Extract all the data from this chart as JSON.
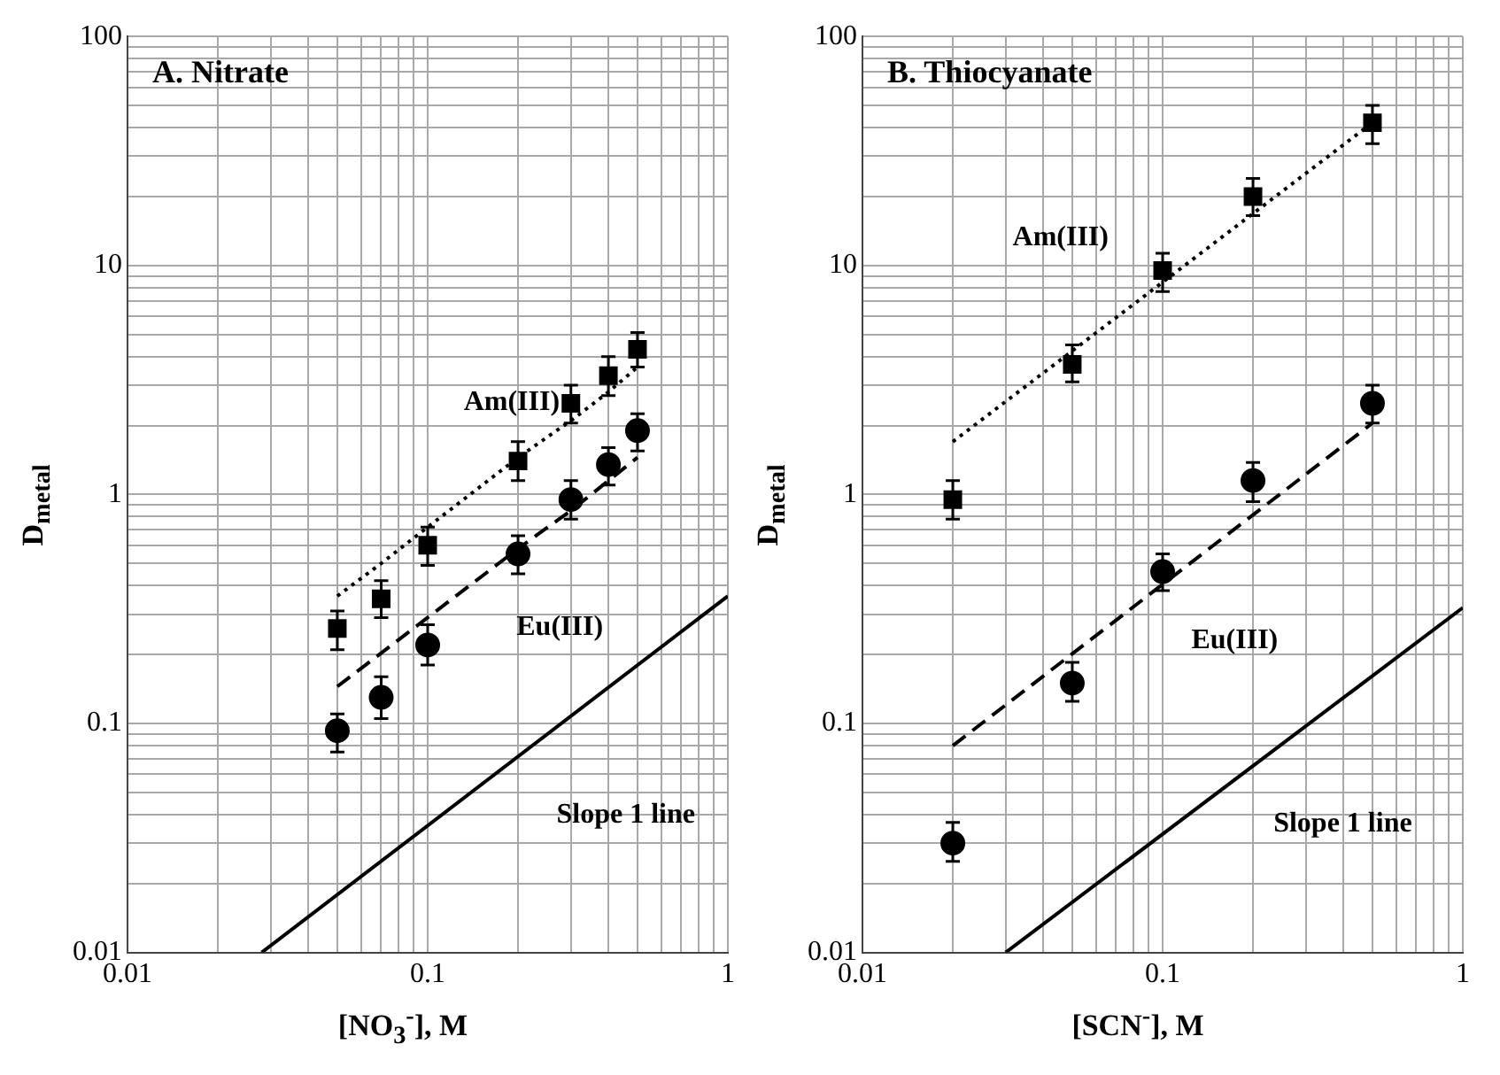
{
  "chart_data": [
    {
      "type": "scatter",
      "title": "A. Nitrate",
      "xlabel": "[NO$_{3}$$^{-}$], M",
      "ylabel": "D$_{metal}$",
      "log": "xy",
      "grid": true,
      "xlim": [
        0.01,
        1
      ],
      "ylim": [
        0.01,
        100
      ],
      "xticks": [
        0.01,
        {
          "value": 0.02,
          "label": null
        },
        {
          "value": 0.03,
          "label": null
        },
        {
          "value": 0.04,
          "label": null
        },
        {
          "value": 0.05,
          "label": null
        },
        {
          "value": 0.06,
          "label": null
        },
        {
          "value": 0.07,
          "label": null
        },
        {
          "value": 0.08,
          "label": null
        },
        {
          "value": 0.09,
          "label": null
        },
        0.1,
        {
          "value": 0.2,
          "label": null
        },
        {
          "value": 0.3,
          "label": null
        },
        {
          "value": 0.4,
          "label": null
        },
        {
          "value": 0.5,
          "label": null
        },
        {
          "value": 0.6,
          "label": null
        },
        {
          "value": 0.7,
          "label": null
        },
        {
          "value": 0.8,
          "label": null
        },
        {
          "value": 0.9,
          "label": null
        },
        1
      ],
      "yticks": [
        0.01,
        {
          "value": 0.02,
          "label": null
        },
        {
          "value": 0.03,
          "label": null
        },
        {
          "value": 0.04,
          "label": null
        },
        {
          "value": 0.05,
          "label": null
        },
        {
          "value": 0.06,
          "label": null
        },
        {
          "value": 0.07,
          "label": null
        },
        {
          "value": 0.08,
          "label": null
        },
        {
          "value": 0.09,
          "label": null
        },
        0.1,
        {
          "value": 0.2,
          "label": null
        },
        {
          "value": 0.3,
          "label": null
        },
        {
          "value": 0.4,
          "label": null
        },
        {
          "value": 0.5,
          "label": null
        },
        {
          "value": 0.6,
          "label": null
        },
        {
          "value": 0.7,
          "label": null
        },
        {
          "value": 0.8,
          "label": null
        },
        {
          "value": 0.9,
          "label": null
        },
        1,
        {
          "value": 2,
          "label": null
        },
        {
          "value": 3,
          "label": null
        },
        {
          "value": 4,
          "label": null
        },
        {
          "value": 5,
          "label": null
        },
        {
          "value": 6,
          "label": null
        },
        {
          "value": 7,
          "label": null
        },
        {
          "value": 8,
          "label": null
        },
        {
          "value": 9,
          "label": null
        },
        10,
        {
          "value": 20,
          "label": null
        },
        {
          "value": 30,
          "label": null
        },
        {
          "value": 40,
          "label": null
        },
        {
          "value": 50,
          "label": null
        },
        {
          "value": 60,
          "label": null
        },
        {
          "value": 70,
          "label": null
        },
        {
          "value": 80,
          "label": null
        },
        {
          "value": 90,
          "label": null
        },
        100
      ],
      "series": [
        {
          "type": "scatter",
          "name": "Am(III)",
          "marker": "square",
          "color": "#000000",
          "x": [
            0.05,
            0.07,
            0.1,
            0.2,
            0.3,
            0.4,
            0.5
          ],
          "values": [
            0.26,
            0.35,
            0.6,
            1.4,
            2.5,
            3.3,
            4.3
          ],
          "errors": [
            [
              0.21,
              0.31
            ],
            [
              0.29,
              0.42
            ],
            [
              0.49,
              0.72
            ],
            [
              1.15,
              1.7
            ],
            [
              2.05,
              3.0
            ],
            [
              2.7,
              4.0
            ],
            [
              3.6,
              5.1
            ]
          ]
        },
        {
          "type": "scatter",
          "name": "Eu(III)",
          "marker": "circle",
          "color": "#000000",
          "x": [
            0.05,
            0.07,
            0.1,
            0.2,
            0.3,
            0.4,
            0.5
          ],
          "values": [
            0.093,
            0.13,
            0.22,
            0.55,
            0.95,
            1.35,
            1.9
          ],
          "errors": [
            [
              0.075,
              0.11
            ],
            [
              0.105,
              0.16
            ],
            [
              0.18,
              0.27
            ],
            [
              0.45,
              0.66
            ],
            [
              0.78,
              1.15
            ],
            [
              1.1,
              1.6
            ],
            [
              1.55,
              2.25
            ]
          ]
        },
        {
          "type": "line",
          "marker": "none",
          "line_style": "dotted",
          "color": "#000000",
          "x": [
            0.05,
            0.07,
            0.1,
            0.2,
            0.3,
            0.4,
            0.5
          ],
          "values": [
            0.36,
            0.5,
            0.72,
            1.45,
            2.1,
            2.8,
            3.6
          ]
        },
        {
          "type": "line",
          "marker": "none",
          "line_style": "dashed",
          "color": "#000000",
          "x": [
            0.05,
            0.1,
            0.2,
            0.3,
            0.5
          ],
          "values": [
            0.145,
            0.29,
            0.58,
            0.85,
            1.45
          ]
        },
        {
          "type": "line",
          "name": "Slope 1 line",
          "marker": "none",
          "line_style": "solid",
          "color": "#000000",
          "x": [
            0.028,
            1
          ],
          "values": [
            0.01,
            0.36
          ]
        }
      ]
    },
    {
      "type": "scatter",
      "title": "B. Thiocyanate",
      "xlabel": "[SCN$^{-}$], M",
      "ylabel": "D$_{metal}$",
      "log": "xy",
      "grid": true,
      "xlim": [
        0.01,
        1
      ],
      "ylim": [
        0.01,
        100
      ],
      "xticks": [
        0.01,
        {
          "value": 0.02,
          "label": null
        },
        {
          "value": 0.03,
          "label": null
        },
        {
          "value": 0.04,
          "label": null
        },
        {
          "value": 0.05,
          "label": null
        },
        {
          "value": 0.06,
          "label": null
        },
        {
          "value": 0.07,
          "label": null
        },
        {
          "value": 0.08,
          "label": null
        },
        {
          "value": 0.09,
          "label": null
        },
        0.1,
        {
          "value": 0.2,
          "label": null
        },
        {
          "value": 0.3,
          "label": null
        },
        {
          "value": 0.4,
          "label": null
        },
        {
          "value": 0.5,
          "label": null
        },
        {
          "value": 0.6,
          "label": null
        },
        {
          "value": 0.7,
          "label": null
        },
        {
          "value": 0.8,
          "label": null
        },
        {
          "value": 0.9,
          "label": null
        },
        1
      ],
      "yticks": [
        0.01,
        {
          "value": 0.02,
          "label": null
        },
        {
          "value": 0.03,
          "label": null
        },
        {
          "value": 0.04,
          "label": null
        },
        {
          "value": 0.05,
          "label": null
        },
        {
          "value": 0.06,
          "label": null
        },
        {
          "value": 0.07,
          "label": null
        },
        {
          "value": 0.08,
          "label": null
        },
        {
          "value": 0.09,
          "label": null
        },
        0.1,
        {
          "value": 0.2,
          "label": null
        },
        {
          "value": 0.3,
          "label": null
        },
        {
          "value": 0.4,
          "label": null
        },
        {
          "value": 0.5,
          "label": null
        },
        {
          "value": 0.6,
          "label": null
        },
        {
          "value": 0.7,
          "label": null
        },
        {
          "value": 0.8,
          "label": null
        },
        {
          "value": 0.9,
          "label": null
        },
        1,
        {
          "value": 2,
          "label": null
        },
        {
          "value": 3,
          "label": null
        },
        {
          "value": 4,
          "label": null
        },
        {
          "value": 5,
          "label": null
        },
        {
          "value": 6,
          "label": null
        },
        {
          "value": 7,
          "label": null
        },
        {
          "value": 8,
          "label": null
        },
        {
          "value": 9,
          "label": null
        },
        10,
        {
          "value": 20,
          "label": null
        },
        {
          "value": 30,
          "label": null
        },
        {
          "value": 40,
          "label": null
        },
        {
          "value": 50,
          "label": null
        },
        {
          "value": 60,
          "label": null
        },
        {
          "value": 70,
          "label": null
        },
        {
          "value": 80,
          "label": null
        },
        {
          "value": 90,
          "label": null
        },
        100
      ],
      "series": [
        {
          "type": "scatter",
          "name": "Am(III)",
          "marker": "square",
          "color": "#000000",
          "x": [
            0.02,
            0.05,
            0.1,
            0.2,
            0.5
          ],
          "values": [
            0.95,
            3.7,
            9.5,
            20,
            42
          ],
          "errors": [
            [
              0.78,
              1.15
            ],
            [
              3.1,
              4.5
            ],
            [
              7.7,
              11.3
            ],
            [
              16.5,
              24
            ],
            [
              34,
              50
            ]
          ]
        },
        {
          "type": "scatter",
          "name": "Eu(III)",
          "marker": "circle",
          "color": "#000000",
          "x": [
            0.02,
            0.05,
            0.1,
            0.2,
            0.5
          ],
          "values": [
            0.03,
            0.15,
            0.46,
            1.15,
            2.5
          ],
          "errors": [
            [
              0.025,
              0.037
            ],
            [
              0.125,
              0.185
            ],
            [
              0.38,
              0.55
            ],
            [
              0.93,
              1.38
            ],
            [
              2.05,
              3.0
            ]
          ]
        },
        {
          "type": "line",
          "marker": "none",
          "line_style": "dotted",
          "color": "#000000",
          "x": [
            0.02,
            0.5
          ],
          "values": [
            1.7,
            42
          ]
        },
        {
          "type": "line",
          "marker": "none",
          "line_style": "dashed",
          "color": "#000000",
          "x": [
            0.02,
            0.5
          ],
          "values": [
            0.08,
            2.05
          ]
        },
        {
          "type": "line",
          "name": "Slope 1 line",
          "marker": "none",
          "line_style": "solid",
          "color": "#000000",
          "x": [
            0.03,
            1
          ],
          "values": [
            0.01,
            0.32
          ]
        }
      ]
    }
  ]
}
